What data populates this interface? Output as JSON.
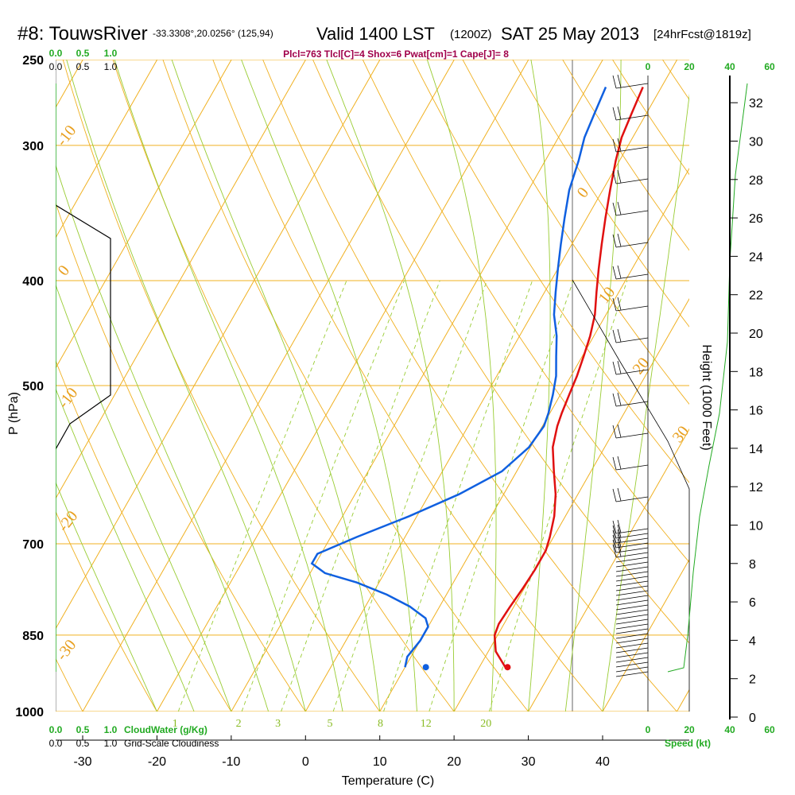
{
  "title": {
    "station": "#8: TouwsRiver",
    "coords": "-33.3308°,20.0256° (125,94)",
    "valid": "Valid 1400 LST",
    "zulu": "(1200Z)",
    "date": "SAT 25 May 2013",
    "fcst": "[24hrFcst@1819z]"
  },
  "indices": "Plcl=763 Tlcl[C]=4 Shox=6 Pwat[cm]=1 Cape[J]= 8",
  "colors": {
    "isotherm": "#f0b020",
    "dry_adiabat": "#99cc33",
    "moist_adiabat": "#99cc33",
    "mixing_ratio": "#99cc33",
    "temperature": "#e01010",
    "dewpoint": "#1060e0",
    "green_text": "#22aa22",
    "indices_text": "#a0004a"
  },
  "chart_data": {
    "type": "line",
    "xlabel": "Temperature (C)",
    "ylabel": "P (hPa)",
    "right_label": "Height (1000 Feet)",
    "x_ticks": [
      "-30",
      "-20",
      "-10",
      "0",
      "10",
      "20",
      "30",
      "40"
    ],
    "p_ticks": [
      "250",
      "300",
      "400",
      "500",
      "700",
      "850",
      "1000"
    ],
    "height_ticks": [
      "0",
      "2",
      "4",
      "6",
      "8",
      "10",
      "12",
      "14",
      "16",
      "18",
      "20",
      "22",
      "24",
      "26",
      "28",
      "30",
      "32"
    ],
    "isotherm_labels": [
      "-30",
      "-20",
      "-10",
      "0",
      "10",
      "20",
      "30"
    ],
    "mixing_ratio_labels": [
      "1",
      "2",
      "3",
      "5",
      "8",
      "12",
      "20"
    ],
    "cloud_top_labels": [
      "0.0",
      "0.5",
      "1.0"
    ],
    "cloud_bottom_labels_green": [
      "0.0",
      "0.5",
      "1.0"
    ],
    "cloud_bottom_green_title": "CloudWater (g/Kg)",
    "cloud_bottom_labels_black": [
      "0.0",
      "0.5",
      "1.0"
    ],
    "cloud_bottom_black_title": "Grid-Scale Cloudiness",
    "speed_ticks": [
      "0",
      "20",
      "40",
      "60"
    ],
    "speed_label": "Speed (kt)",
    "series": [
      {
        "key": "temperature",
        "points": [
          [
            -2.5,
            265
          ],
          [
            -2,
            280
          ],
          [
            -1.5,
            295
          ],
          [
            -0.5,
            310
          ],
          [
            1,
            330
          ],
          [
            2.5,
            350
          ],
          [
            4,
            370
          ],
          [
            5.5,
            390
          ],
          [
            7,
            410
          ],
          [
            8.5,
            430
          ],
          [
            9.5,
            450
          ],
          [
            10.2,
            470
          ],
          [
            10.8,
            490
          ],
          [
            11.2,
            510
          ],
          [
            11.6,
            530
          ],
          [
            12,
            545
          ],
          [
            13,
            570
          ],
          [
            15,
            600
          ],
          [
            17,
            630
          ],
          [
            18.5,
            660
          ],
          [
            19.5,
            690
          ],
          [
            20,
            710
          ],
          [
            20,
            740
          ],
          [
            19.8,
            770
          ],
          [
            19.5,
            800
          ],
          [
            19.3,
            830
          ],
          [
            19.6,
            850
          ],
          [
            21,
            880
          ],
          [
            23.5,
            910
          ]
        ]
      },
      {
        "key": "dewpoint",
        "points": [
          [
            -7.5,
            265
          ],
          [
            -7,
            280
          ],
          [
            -6.5,
            295
          ],
          [
            -5.5,
            310
          ],
          [
            -4.5,
            330
          ],
          [
            -3,
            350
          ],
          [
            -1.5,
            370
          ],
          [
            0,
            390
          ],
          [
            1.5,
            410
          ],
          [
            3,
            430
          ],
          [
            5,
            450
          ],
          [
            6.5,
            470
          ],
          [
            8,
            490
          ],
          [
            9,
            510
          ],
          [
            9.8,
            530
          ],
          [
            10.2,
            545
          ],
          [
            9.8,
            570
          ],
          [
            8,
            600
          ],
          [
            4,
            630
          ],
          [
            -1,
            660
          ],
          [
            -6.5,
            690
          ],
          [
            -10.5,
            715
          ],
          [
            -10.5,
            730
          ],
          [
            -8,
            745
          ],
          [
            -3,
            760
          ],
          [
            2,
            780
          ],
          [
            6,
            800
          ],
          [
            9,
            820
          ],
          [
            10,
            835
          ],
          [
            10,
            860
          ],
          [
            9.5,
            890
          ],
          [
            10,
            910
          ]
        ]
      }
    ],
    "surface_temperature": [
      23.8,
      910
    ],
    "surface_dewpoint": [
      12.8,
      910
    ]
  }
}
